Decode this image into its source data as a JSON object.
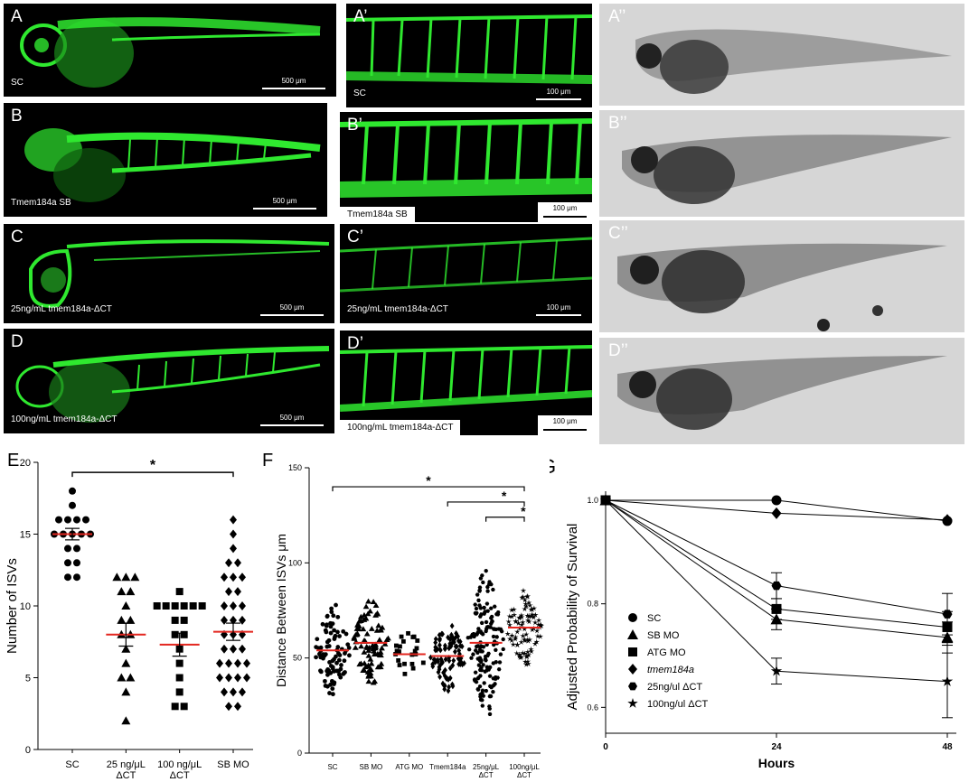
{
  "panel_labels": {
    "A": "A",
    "A1": "A’",
    "A2": "A’’",
    "B": "B",
    "B1": "B’",
    "B2": "B’’",
    "C": "C",
    "C1": "C’",
    "C2": "C’’",
    "D": "D",
    "D1": "D’",
    "D2": "D’’",
    "E": "E",
    "F": "F",
    "G": "G"
  },
  "row_captions": {
    "A": "SC",
    "B": "Tmem184a SB",
    "C": "25ng/mL tmem184a-ΔCT",
    "D": "100ng/mL tmem184a-ΔCT"
  },
  "scalebars": {
    "whole": "500 μm",
    "zoom": "100 μm"
  },
  "colors": {
    "fluorescence": "#2fe82f",
    "median": "#e3261f"
  },
  "chart_data": [
    {
      "id": "E",
      "type": "scatter",
      "ylabel": "Number of ISVs",
      "ylim": [
        0,
        20
      ],
      "yticks": [
        "0",
        "5",
        "10",
        "15",
        "20"
      ],
      "categories": [
        "SC",
        "25 ng/μL\nΔCT",
        "100 ng/μL\nΔCT",
        "SB MO"
      ],
      "markers": [
        "circle",
        "triangle",
        "square",
        "diamond"
      ],
      "means": [
        15,
        8,
        7.3,
        8.2
      ],
      "sem": [
        0.4,
        0.8,
        0.8,
        0.6
      ],
      "points": [
        [
          18,
          17,
          16,
          16,
          16,
          16,
          15,
          15,
          15,
          15,
          15,
          14,
          14,
          13,
          13,
          12,
          12
        ],
        [
          12,
          12,
          12,
          11,
          11,
          10,
          9,
          9,
          8,
          8,
          7,
          6,
          5,
          5,
          4,
          2
        ],
        [
          11,
          10,
          10,
          10,
          10,
          10,
          10,
          9,
          9,
          8,
          8,
          7,
          6,
          5,
          4,
          3,
          3
        ],
        [
          16,
          15,
          14,
          13,
          13,
          12,
          12,
          12,
          11,
          11,
          10,
          10,
          10,
          9,
          9,
          9,
          8,
          8,
          8,
          7,
          7,
          7,
          6,
          6,
          6,
          6,
          5,
          5,
          5,
          5,
          4,
          4,
          4,
          3,
          3
        ]
      ],
      "significance": [
        {
          "from": 0,
          "to": 3,
          "label": "*"
        }
      ]
    },
    {
      "id": "F",
      "type": "scatter",
      "ylabel": "Distance Between ISVs μm",
      "ylim": [
        0,
        150
      ],
      "yticks": [
        "0",
        "50",
        "100",
        "150"
      ],
      "categories": [
        "SC",
        "SB MO",
        "ATG MO",
        "Tmem184a",
        "25ng/μL\nΔCT",
        "100ng/μL\nΔCT"
      ],
      "medians": [
        54,
        58,
        52,
        51,
        58,
        66
      ],
      "spread": [
        [
          31,
          84
        ],
        [
          30,
          80
        ],
        [
          40,
          68
        ],
        [
          30,
          70
        ],
        [
          20,
          101
        ],
        [
          45,
          88
        ]
      ],
      "significance": [
        {
          "from": 0,
          "to": 5,
          "label": "*"
        },
        {
          "from": 3,
          "to": 5,
          "label": "*"
        },
        {
          "from": 4,
          "to": 5,
          "label": "*"
        }
      ]
    },
    {
      "id": "G",
      "type": "line",
      "xlabel": "Hours",
      "ylabel": "Adjusted Probability of Survival",
      "x": [
        0,
        24,
        48
      ],
      "xticks": [
        "0",
        "24",
        "48"
      ],
      "ylim": [
        0.55,
        1.0
      ],
      "yticks": [
        "0.6",
        "0.8",
        "1.0"
      ],
      "legend": "bottom-left",
      "series": [
        {
          "name": "SC",
          "marker": "circle",
          "values": [
            1.0,
            1.0,
            0.96
          ],
          "err": [
            0,
            0,
            0
          ]
        },
        {
          "name": "SB MO",
          "marker": "triangle",
          "values": [
            1.0,
            0.77,
            0.735
          ],
          "err": [
            0,
            0.02,
            0.03
          ]
        },
        {
          "name": "ATG MO",
          "marker": "square",
          "values": [
            1.0,
            0.79,
            0.755
          ],
          "err": [
            0,
            0.02,
            0.03
          ]
        },
        {
          "name": "tmem184a",
          "marker": "diamond",
          "values": [
            1.0,
            0.975,
            0.962
          ],
          "err": [
            0,
            0,
            0
          ]
        },
        {
          "name": "25ng/ul ΔCT",
          "marker": "hexagon",
          "values": [
            1.0,
            0.835,
            0.78
          ],
          "err": [
            0,
            0.025,
            0.04
          ]
        },
        {
          "name": "100ng/ul ΔCT",
          "marker": "star",
          "values": [
            1.0,
            0.67,
            0.65
          ],
          "err": [
            0,
            0.025,
            0.07
          ]
        }
      ]
    }
  ]
}
